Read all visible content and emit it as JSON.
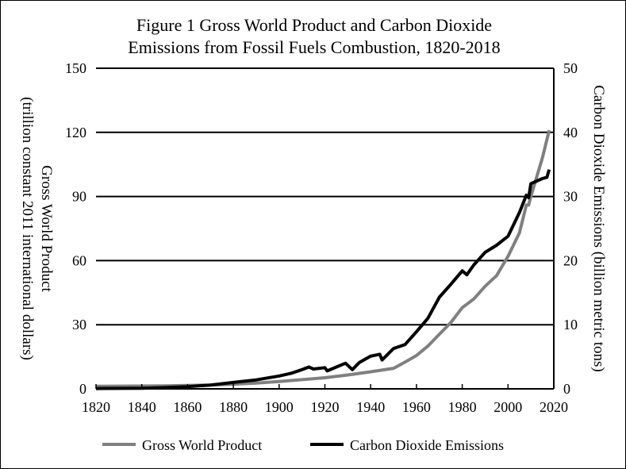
{
  "chart_data": {
    "type": "line",
    "title_lines": [
      "Figure 1 Gross World Product and Carbon Dioxide",
      "Emissions from Fossil Fuels Combustion, 1820-2018"
    ],
    "xlabel": "",
    "ylabel_left_lines": [
      "Gross World Product",
      "(trillion constant 2011 international dollars)"
    ],
    "ylabel_right": "Carbon Dioxide Emissions (billion metric tons)",
    "xlim": [
      1820,
      2020
    ],
    "ylim_left": [
      0,
      150
    ],
    "ylim_right": [
      0,
      50
    ],
    "x_ticks": [
      1820,
      1840,
      1860,
      1880,
      1900,
      1920,
      1940,
      1960,
      1980,
      2000,
      2020
    ],
    "y_ticks_left": [
      0,
      30,
      60,
      90,
      120,
      150
    ],
    "y_ticks_right": [
      0,
      10,
      20,
      30,
      40,
      50
    ],
    "grid": "horizontal",
    "legend_position": "bottom",
    "series": [
      {
        "name": "Gross World Product",
        "axis": "left",
        "color": "#808080",
        "x": [
          1820,
          1850,
          1870,
          1880,
          1890,
          1900,
          1910,
          1920,
          1930,
          1940,
          1950,
          1955,
          1960,
          1965,
          1970,
          1975,
          1980,
          1985,
          1990,
          1995,
          2000,
          2005,
          2008,
          2009,
          2010,
          2015,
          2018
        ],
        "y": [
          1.2,
          1.4,
          1.8,
          2.2,
          2.7,
          3.4,
          4.3,
          5.2,
          6.5,
          8,
          9.6,
          12.5,
          15.6,
          20,
          25.6,
          31,
          38,
          42,
          48,
          53,
          62,
          73,
          86,
          86,
          90,
          108,
          121
        ]
      },
      {
        "name": "Carbon Dioxide Emissions",
        "axis": "right",
        "color": "#000000",
        "x": [
          1820,
          1840,
          1850,
          1860,
          1870,
          1880,
          1890,
          1900,
          1905,
          1910,
          1913,
          1915,
          1920,
          1921,
          1925,
          1929,
          1932,
          1935,
          1940,
          1944,
          1945,
          1950,
          1955,
          1960,
          1965,
          1970,
          1975,
          1980,
          1982,
          1985,
          1990,
          1995,
          2000,
          2005,
          2008,
          2009,
          2010,
          2015,
          2017,
          2018
        ],
        "y": [
          0.05,
          0.1,
          0.2,
          0.35,
          0.6,
          1,
          1.4,
          2,
          2.4,
          3,
          3.4,
          3.1,
          3.3,
          2.8,
          3.4,
          4,
          3,
          4.1,
          5.1,
          5.4,
          4.5,
          6.3,
          6.9,
          8.9,
          11,
          14.3,
          16.3,
          18.4,
          17.8,
          19.3,
          21.3,
          22.4,
          23.8,
          27.5,
          30.2,
          29.8,
          32,
          32.8,
          33,
          34.2
        ]
      }
    ]
  }
}
